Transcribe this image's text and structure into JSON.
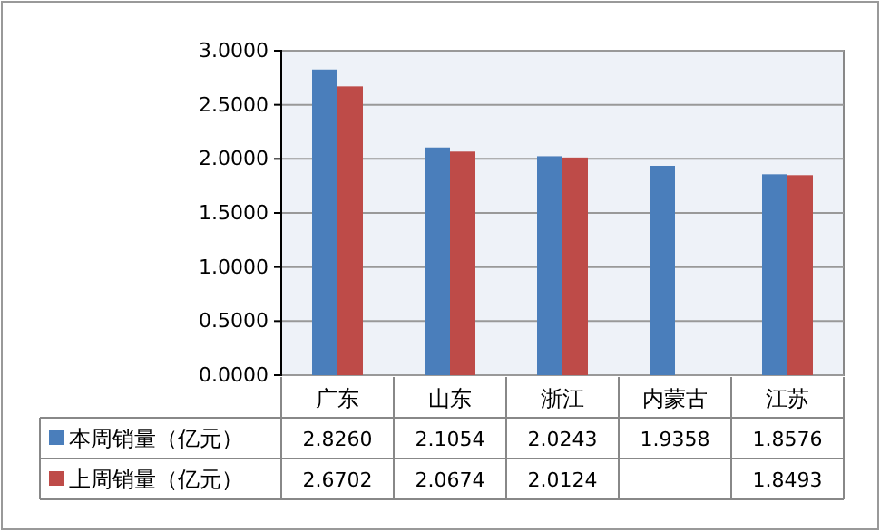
{
  "chart_data": {
    "type": "bar",
    "categories": [
      "广东",
      "山东",
      "浙江",
      "内蒙古",
      "江苏"
    ],
    "series": [
      {
        "name": "本周销量（亿元）",
        "color": "#4a7ebb",
        "values": [
          2.826,
          2.1054,
          2.0243,
          1.9358,
          1.8576
        ],
        "value_labels": [
          "2.8260",
          "2.1054",
          "2.0243",
          "1.9358",
          "1.8576"
        ]
      },
      {
        "name": "上周销量（亿元）",
        "color": "#be4b48",
        "values": [
          2.6702,
          2.0674,
          2.0124,
          null,
          1.8493
        ],
        "value_labels": [
          "2.6702",
          "2.0674",
          "2.0124",
          null,
          "1.8493"
        ]
      }
    ],
    "ylim": [
      0,
      3
    ],
    "yticks": [
      {
        "value": 0,
        "label": "0.0000"
      },
      {
        "value": 0.5,
        "label": "0.5000"
      },
      {
        "value": 1,
        "label": "1.0000"
      },
      {
        "value": 1.5,
        "label": "1.5000"
      },
      {
        "value": 2,
        "label": "2.0000"
      },
      {
        "value": 2.5,
        "label": "2.5000"
      },
      {
        "value": 3,
        "label": "3.0000"
      }
    ],
    "grid": "y",
    "legend": "bottom"
  }
}
